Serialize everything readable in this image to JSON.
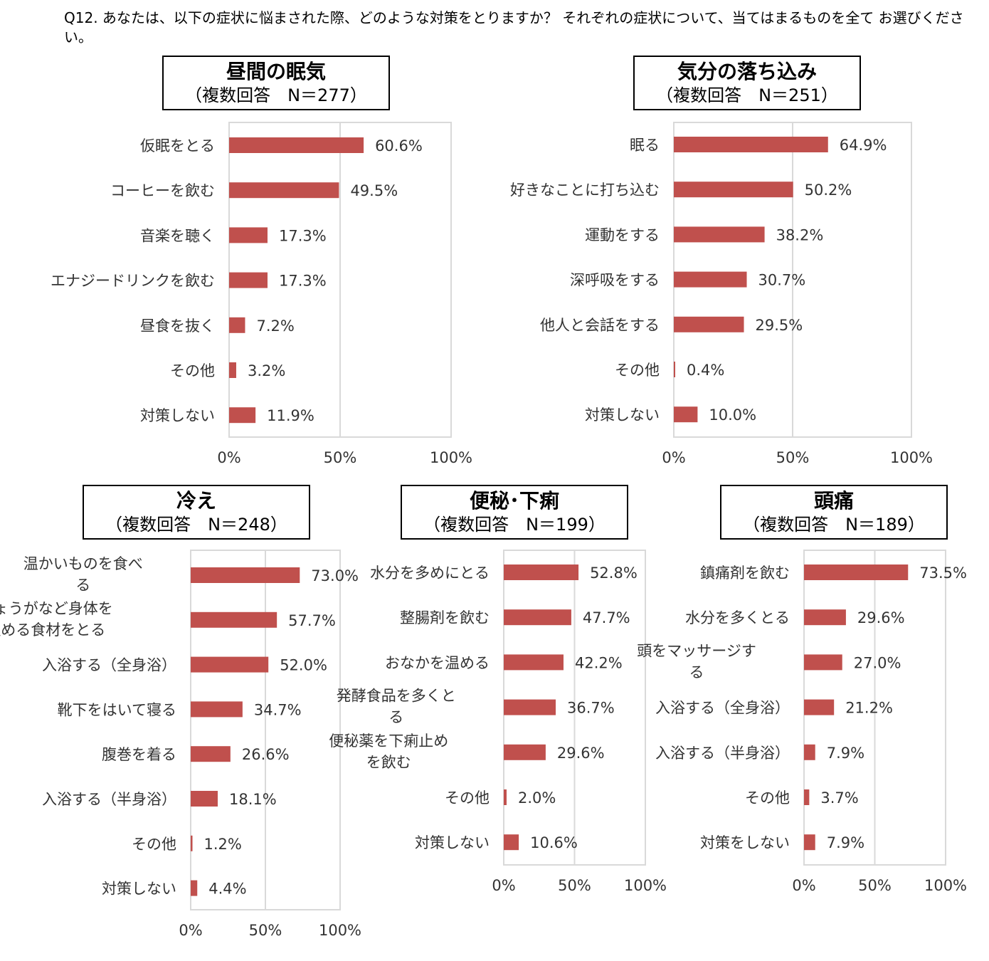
{
  "question": "Q12. あなたは、以下の症状に悩まされた際、どのような対策をとりますか？ それぞれの症状について、当てはまるものを全て お選びください。",
  "colors": {
    "bar": "#c0504d",
    "grid": "#d9d9d9",
    "frame": "#d9d9d9",
    "text": "#333333"
  },
  "panels": [
    {
      "title": "昼間の眠気",
      "subtitle": "（複数回答　N＝277）"
    },
    {
      "title": "気分の落ち込み",
      "subtitle": "（複数回答　N＝251）"
    },
    {
      "title": "冷え",
      "subtitle": "（複数回答　N＝248）"
    },
    {
      "title": "便秘･下痢",
      "subtitle": "（複数回答　N＝199）"
    },
    {
      "title": "頭痛",
      "subtitle": "（複数回答　N＝189）"
    }
  ],
  "chart_data": [
    {
      "type": "bar",
      "orientation": "horizontal",
      "title": "昼間の眠気",
      "subtitle": "（複数回答　N＝277）",
      "categories": [
        "仮眠をとる",
        "コーヒーを飲む",
        "音楽を聴く",
        "エナジードリンクを飲む",
        "昼食を抜く",
        "その他",
        "対策しない"
      ],
      "values": [
        60.6,
        49.5,
        17.3,
        17.3,
        7.2,
        3.2,
        11.9
      ],
      "value_labels": [
        "60.6%",
        "49.5%",
        "17.3%",
        "17.3%",
        "7.2%",
        "3.2%",
        "11.9%"
      ],
      "xticks": [
        "0%",
        "50%",
        "100%"
      ],
      "xlim": [
        0,
        100
      ],
      "grid": true
    },
    {
      "type": "bar",
      "orientation": "horizontal",
      "title": "気分の落ち込み",
      "subtitle": "（複数回答　N＝251）",
      "categories": [
        "眠る",
        "好きなことに打ち込む",
        "運動をする",
        "深呼吸をする",
        "他人と会話をする",
        "その他",
        "対策しない"
      ],
      "values": [
        64.9,
        50.2,
        38.2,
        30.7,
        29.5,
        0.4,
        10.0
      ],
      "value_labels": [
        "64.9%",
        "50.2%",
        "38.2%",
        "30.7%",
        "29.5%",
        "0.4%",
        "10.0%"
      ],
      "xticks": [
        "0%",
        "50%",
        "100%"
      ],
      "xlim": [
        0,
        100
      ],
      "grid": true
    },
    {
      "type": "bar",
      "orientation": "horizontal",
      "title": "冷え",
      "subtitle": "（複数回答　N＝248）",
      "categories": [
        [
          "温かいものを食べ",
          "る"
        ],
        [
          "しょうがなど身体を",
          "温める食材をとる"
        ],
        "入浴する（全身浴）",
        "靴下をはいて寝る",
        "腹巻を着る",
        "入浴する（半身浴）",
        "その他",
        "対策しない"
      ],
      "values": [
        73.0,
        57.7,
        52.0,
        34.7,
        26.6,
        18.1,
        1.2,
        4.4
      ],
      "value_labels": [
        "73.0%",
        "57.7%",
        "52.0%",
        "34.7%",
        "26.6%",
        "18.1%",
        "1.2%",
        "4.4%"
      ],
      "xticks": [
        "0%",
        "50%",
        "100%"
      ],
      "xlim": [
        0,
        100
      ],
      "grid": true
    },
    {
      "type": "bar",
      "orientation": "horizontal",
      "title": "便秘･下痢",
      "subtitle": "（複数回答　N＝199）",
      "categories": [
        "水分を多めにとる",
        "整腸剤を飲む",
        "おなかを温める",
        [
          "発酵食品を多くと",
          "る"
        ],
        [
          "便秘薬を下痢止め",
          "を飲む"
        ],
        "その他",
        "対策しない"
      ],
      "values": [
        52.8,
        47.7,
        42.2,
        36.7,
        29.6,
        2.0,
        10.6
      ],
      "value_labels": [
        "52.8%",
        "47.7%",
        "42.2%",
        "36.7%",
        "29.6%",
        "2.0%",
        "10.6%"
      ],
      "xticks": [
        "0%",
        "50%",
        "100%"
      ],
      "xlim": [
        0,
        100
      ],
      "grid": true
    },
    {
      "type": "bar",
      "orientation": "horizontal",
      "title": "頭痛",
      "subtitle": "（複数回答　N＝189）",
      "categories": [
        "鎮痛剤を飲む",
        "水分を多くとる",
        [
          "頭をマッサージす",
          "る"
        ],
        "入浴する（全身浴）",
        "入浴する（半身浴）",
        "その他",
        "対策をしない"
      ],
      "values": [
        73.5,
        29.6,
        27.0,
        21.2,
        7.9,
        3.7,
        7.9
      ],
      "value_labels": [
        "73.5%",
        "29.6%",
        "27.0%",
        "21.2%",
        "7.9%",
        "3.7%",
        "7.9%"
      ],
      "xticks": [
        "0%",
        "50%",
        "100%"
      ],
      "xlim": [
        0,
        100
      ],
      "grid": true
    }
  ]
}
